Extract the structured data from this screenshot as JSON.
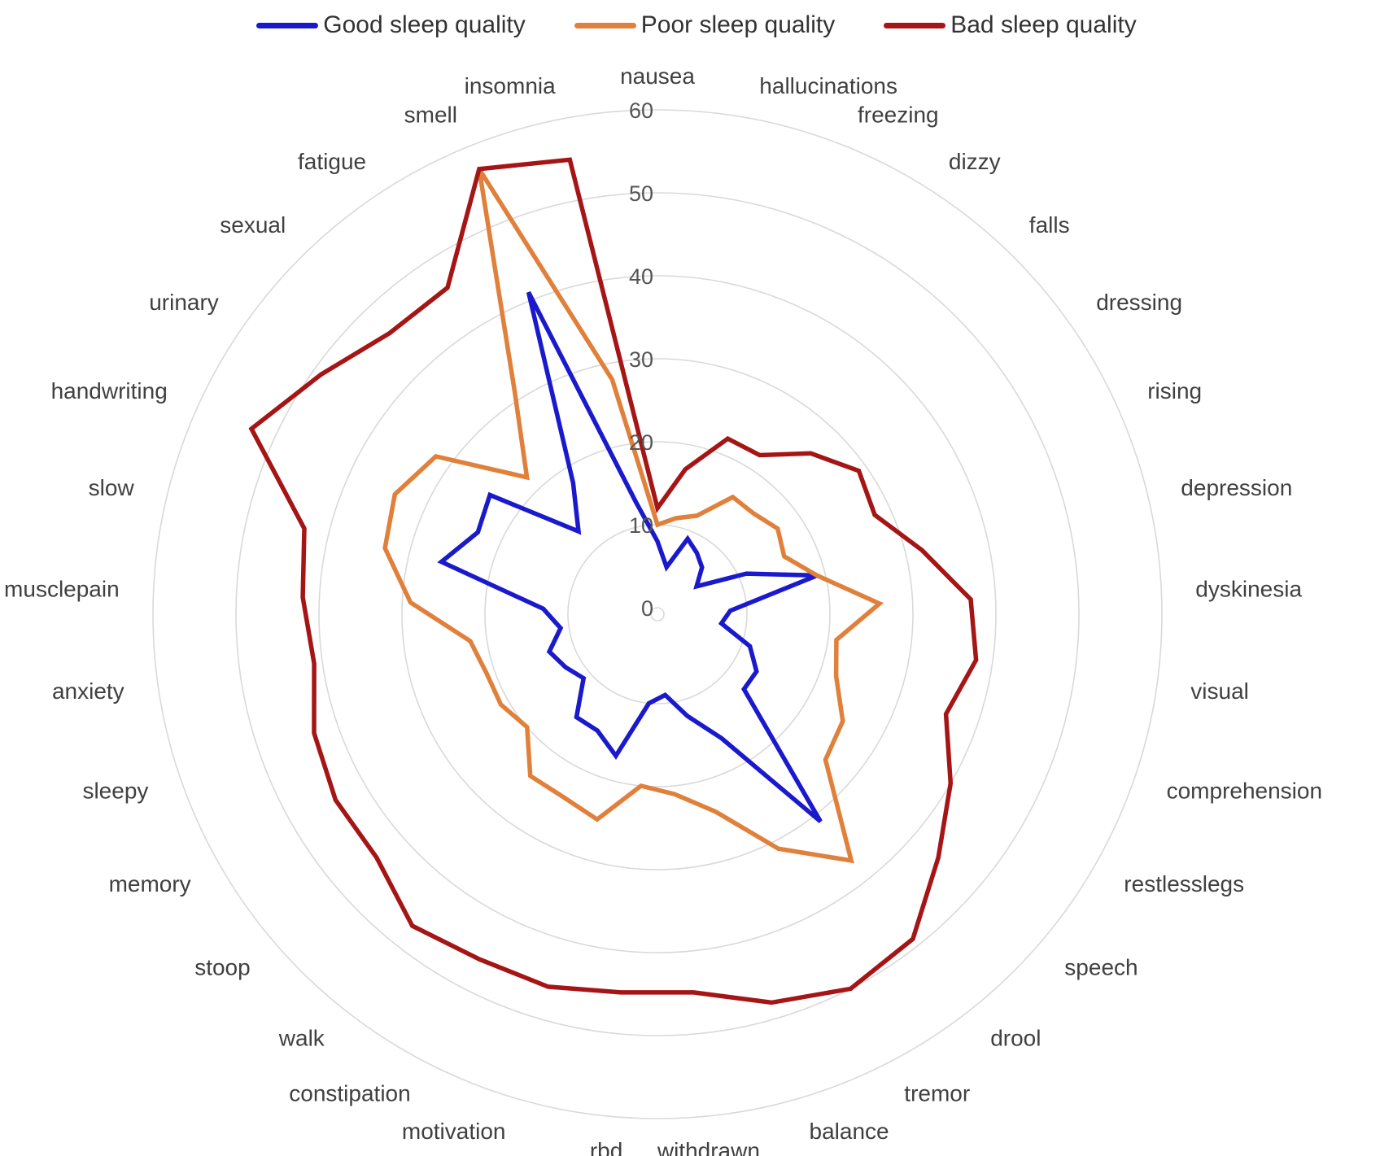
{
  "chart_data": {
    "type": "radar",
    "categories": [
      "nausea",
      "hallucinations",
      "freezing",
      "dizzy",
      "falls",
      "dressing",
      "rising",
      "depression",
      "dyskinesia",
      "visual",
      "comprehension",
      "restlesslegs",
      "speech",
      "drool",
      "tremor",
      "balance",
      "withdrawn",
      "rbd",
      "motivation",
      "constipation",
      "walk",
      "stoop",
      "memory",
      "sleepy",
      "anxiety",
      "musclepain",
      "slow",
      "handwriting",
      "urinary",
      "sexual",
      "fatigue",
      "smell",
      "insomnia"
    ],
    "series": [
      {
        "name": "Good sleep quality",
        "color": "#1a1acc",
        "values": [
          8,
          5,
          9,
          8,
          7,
          5,
          11,
          19,
          8,
          7,
          11,
          13,
          13,
          31,
          16,
          12,
          9,
          10,
          17,
          15,
          15,
          11,
          12,
          13,
          11,
          13,
          26,
          23,
          24,
          13,
          18,
          41,
          13
        ]
      },
      {
        "name": "Poor sleep quality",
        "color": "#e0803a",
        "values": [
          10,
          11,
          12,
          16,
          16,
          17,
          16,
          19,
          26,
          21,
          22,
          25,
          26,
          37,
          31,
          24,
          21,
          20,
          25,
          24,
          24,
          20,
          21,
          21,
          22,
          29,
          33,
          34,
          32,
          22,
          31,
          57,
          28
        ]
      },
      {
        "name": "Bad sleep quality",
        "color": "#a51515",
        "values": [
          12,
          17,
          22,
          22,
          26,
          29,
          28,
          32,
          37,
          38,
          36,
          40,
          44,
          49,
          50,
          48,
          45,
          45,
          46,
          46,
          47,
          44,
          44,
          43,
          41,
          42,
          43,
          53,
          49,
          46,
          46,
          57,
          55
        ]
      }
    ],
    "rmin": 0,
    "rmax": 60,
    "ticks": [
      0,
      10,
      20,
      30,
      40,
      50,
      60
    ],
    "legend_position": "top",
    "grid": true
  },
  "legend": [
    {
      "label": "Good sleep quality",
      "color": "#1a1acc"
    },
    {
      "label": "Poor sleep quality",
      "color": "#e0803a"
    },
    {
      "label": "Bad sleep quality",
      "color": "#a51515"
    }
  ]
}
